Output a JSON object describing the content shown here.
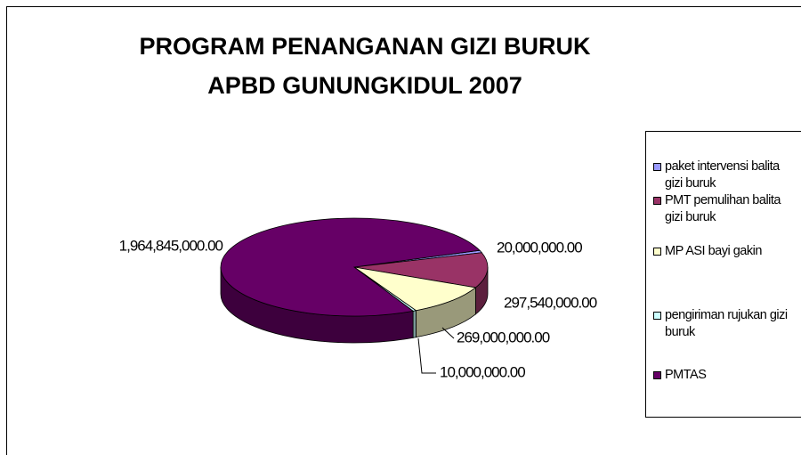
{
  "chart_data": {
    "type": "pie3d",
    "title": "PROGRAM PENANGANAN GIZI BURUK APBD GUNUNGKIDUL 2007",
    "categories": [
      "paket intervensi balita gizi buruk",
      "PMT pemulihan balita gizi buruk",
      "MP ASI bayi gakin",
      "pengiriman rujukan gizi buruk",
      "PMTAS"
    ],
    "values": [
      20000000,
      297540000,
      269000000,
      10000000,
      1964845000
    ],
    "value_labels": [
      "20,000,000.00",
      "297,540,000.00",
      "269,000,000.00",
      "10,000,000.00",
      "1,964,845,000.00"
    ],
    "colors": [
      "#9999ff",
      "#993366",
      "#ffffcc",
      "#ccffff",
      "#660066"
    ],
    "legend": "right"
  }
}
